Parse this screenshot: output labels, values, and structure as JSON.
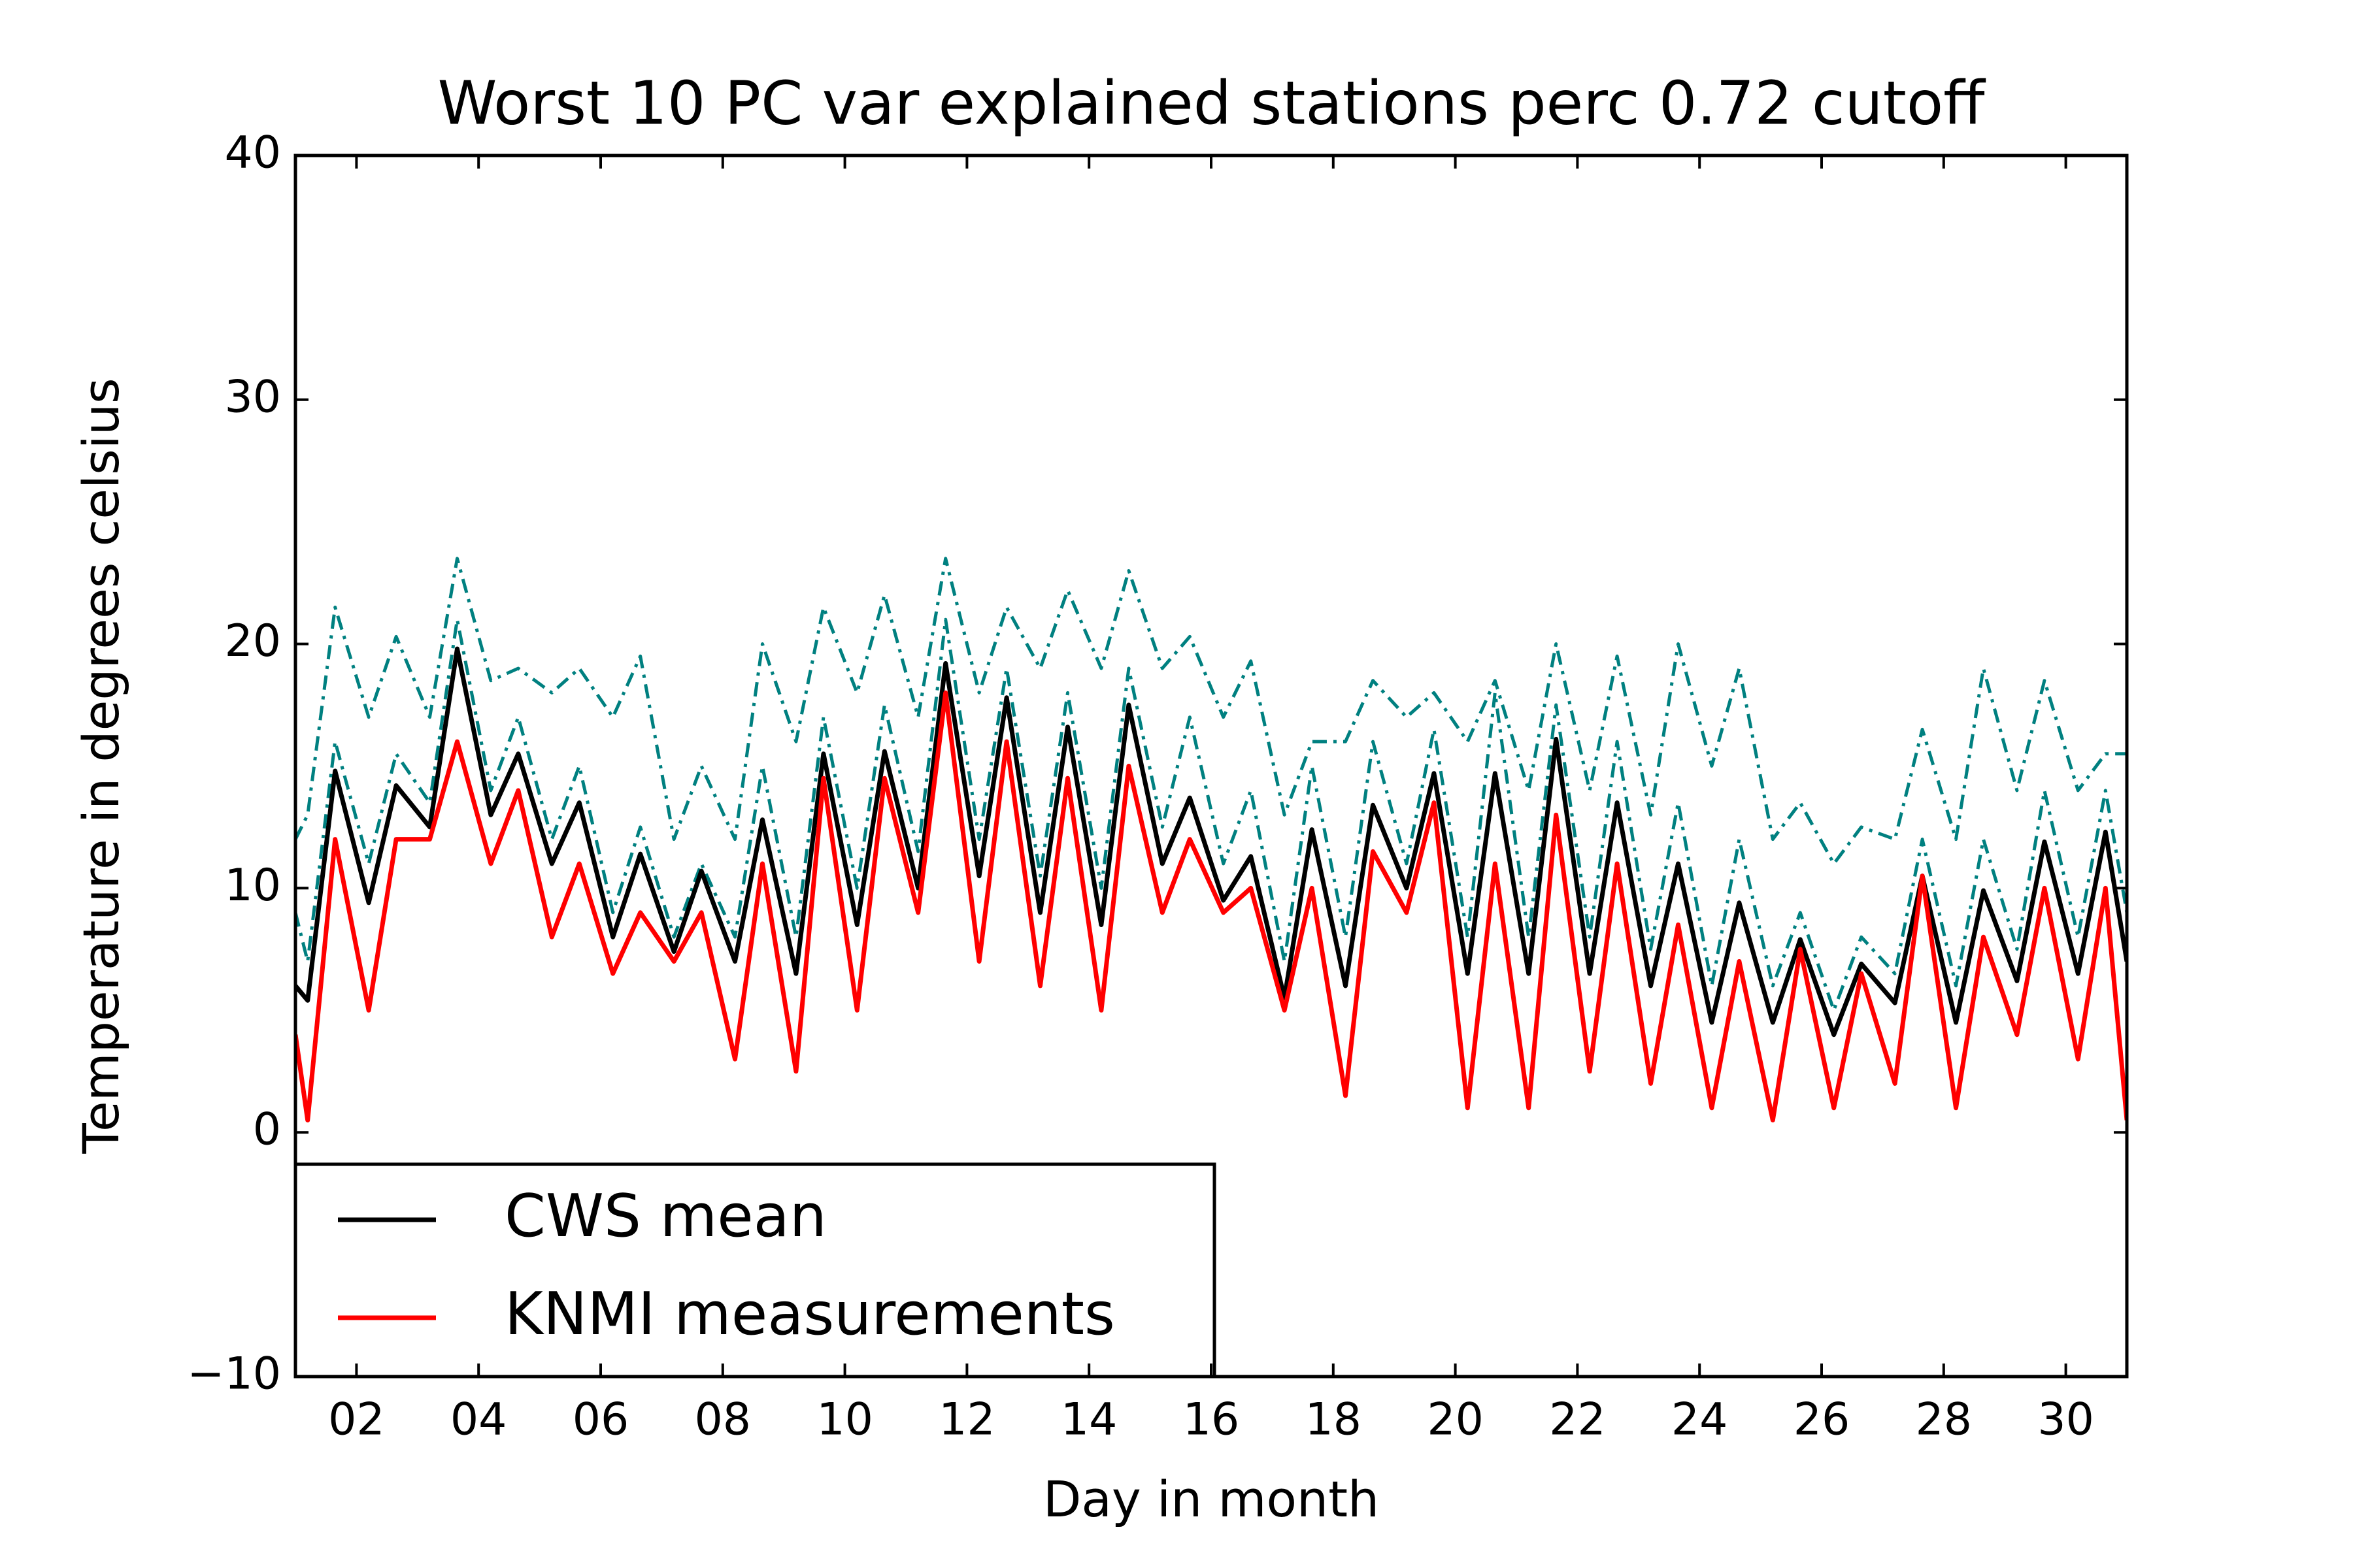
{
  "chart_data": {
    "type": "line",
    "title": "Worst 10 PC var explained stations perc 0.72 cutoff",
    "xlabel": "Day in month",
    "ylabel": "Temperature in degrees celsius",
    "x": [
      1,
      1.2,
      1.65,
      2.2,
      2.65,
      3.2,
      3.65,
      4.2,
      4.65,
      5.2,
      5.65,
      6.2,
      6.65,
      7.2,
      7.65,
      8.2,
      8.65,
      9.2,
      9.65,
      10.2,
      10.65,
      11.2,
      11.65,
      12.2,
      12.65,
      13.2,
      13.65,
      14.2,
      14.65,
      15.2,
      15.65,
      16.2,
      16.65,
      17.2,
      17.65,
      18.2,
      18.65,
      19.2,
      19.65,
      20.2,
      20.65,
      21.2,
      21.65,
      22.2,
      22.65,
      23.2,
      23.65,
      24.2,
      24.65,
      25.2,
      25.65,
      26.2,
      26.65,
      27.2,
      27.65,
      28.2,
      28.65,
      29.2,
      29.65,
      30.2,
      30.65,
      31
    ],
    "series": [
      {
        "color": "#008080",
        "style": "dashdot",
        "values": [
          12,
          13,
          21.5,
          17,
          20.3,
          17,
          23.5,
          18.5,
          19,
          18,
          19,
          17,
          19.5,
          12,
          15,
          12,
          20,
          16,
          21.5,
          18,
          22,
          17,
          23.5,
          18,
          21.5,
          19,
          22.2,
          19,
          23,
          19,
          20.3,
          17,
          19.3,
          13,
          16,
          16,
          18.5,
          17,
          18,
          16,
          18.5,
          14,
          20,
          14,
          19.5,
          13,
          20,
          15,
          19,
          12,
          13.5,
          11,
          12.5,
          12,
          16.5,
          12,
          19,
          14,
          18.5,
          14,
          15.5,
          15.5
        ]
      },
      {
        "color": "#008080",
        "style": "dashdot",
        "values": [
          9,
          7,
          16,
          11,
          15.5,
          13.5,
          21,
          14,
          17,
          12,
          15,
          9,
          12.5,
          8,
          11,
          8,
          15,
          8,
          17,
          10,
          17.5,
          11.5,
          21,
          12,
          19,
          10.5,
          18,
          10,
          19,
          12.5,
          17,
          11,
          14,
          7,
          15,
          8,
          16,
          11,
          16.5,
          8,
          18,
          8,
          17.5,
          8,
          16,
          7.5,
          13.5,
          6,
          12,
          6,
          9,
          5,
          8,
          6.5,
          12,
          6,
          12,
          7.5,
          14,
          8,
          14,
          9
        ]
      },
      {
        "name": "CWS mean",
        "color": "#000000",
        "values": [
          6,
          5.4,
          14.8,
          9.4,
          14.2,
          12.5,
          19.8,
          13.0,
          15.5,
          11.0,
          13.5,
          8.0,
          11.4,
          7.4,
          10.7,
          7.0,
          12.8,
          6.5,
          15.5,
          8.5,
          15.6,
          10.0,
          19.2,
          10.5,
          17.8,
          9.0,
          16.6,
          8.5,
          17.5,
          11.0,
          13.7,
          9.5,
          11.3,
          5.5,
          12.4,
          6.0,
          13.4,
          10.0,
          14.7,
          6.5,
          14.7,
          6.5,
          16.1,
          6.5,
          13.5,
          6.0,
          11.0,
          4.5,
          9.4,
          4.5,
          7.9,
          4.0,
          6.9,
          5.3,
          10.5,
          4.5,
          9.9,
          6.2,
          11.9,
          6.5,
          12.3,
          7.0
        ]
      },
      {
        "name": "KNMI measurements",
        "color": "#ff0000",
        "values": [
          4,
          0.5,
          12,
          5,
          12,
          12,
          16,
          11,
          14,
          8,
          11,
          6.5,
          9,
          7,
          9,
          3,
          11,
          2.5,
          14.5,
          5,
          14.5,
          9,
          18,
          7,
          16,
          6,
          14.5,
          5,
          15,
          9,
          12,
          9,
          10,
          5,
          10,
          1.5,
          11.5,
          9,
          13.5,
          1,
          11,
          1,
          13,
          2.5,
          11,
          2,
          8.5,
          1,
          7,
          0.5,
          7.5,
          1,
          6.5,
          2,
          10.5,
          1,
          8,
          4,
          10,
          3,
          10,
          0.5
        ]
      }
    ],
    "xlim": [
      1,
      31
    ],
    "xticks": [
      {
        "value": 2,
        "label": "02"
      },
      {
        "value": 4,
        "label": "04"
      },
      {
        "value": 6,
        "label": "06"
      },
      {
        "value": 8,
        "label": "08"
      },
      10,
      12,
      14,
      16,
      18,
      20,
      22,
      24,
      26,
      28,
      30
    ],
    "ylim": [
      -10,
      40
    ],
    "yticks": [
      {
        "value": -10,
        "label": "−10"
      },
      0,
      10,
      20,
      30,
      40
    ],
    "grid": false,
    "legend": "lower left"
  }
}
